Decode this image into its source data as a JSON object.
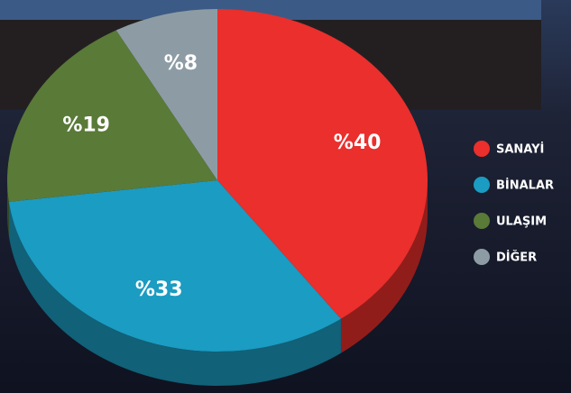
{
  "chart_data": {
    "type": "pie",
    "categories": [
      "SANAYİ",
      "BİNALAR",
      "ULAŞIM",
      "DİĞER"
    ],
    "values": [
      40,
      33,
      19,
      8
    ],
    "value_labels": [
      "%40",
      "%33",
      "%19",
      "%8"
    ],
    "colors": [
      "#ea2f2c",
      "#1b9cc2",
      "#5a7a38",
      "#8d9ca4"
    ],
    "legend": "right"
  }
}
